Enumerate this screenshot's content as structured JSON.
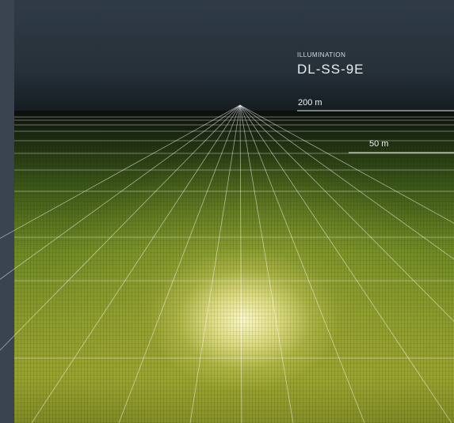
{
  "illumination": {
    "caption": "ILLUMINATION",
    "model": "DL-SS-9E"
  },
  "distance_markers": [
    {
      "label": "200 m"
    },
    {
      "label": "50 m"
    }
  ],
  "colors": {
    "sky": "#2f3b45",
    "grass": "#8a9a2a",
    "beam": "#fffac8",
    "grid_lines": "#ffffff"
  }
}
